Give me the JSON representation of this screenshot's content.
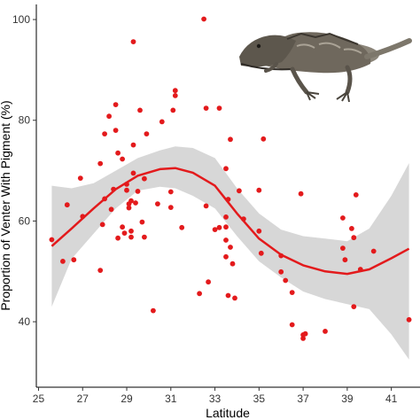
{
  "chart_data": {
    "type": "scatter",
    "title": "",
    "xlabel": "Latitude",
    "ylabel": "Proportion of Venter With Pigment (%)",
    "xlim": [
      24.9,
      42.3
    ],
    "ylim": [
      27,
      103
    ],
    "xticks": [
      "25",
      "27",
      "29",
      "31",
      "33",
      "35",
      "37",
      "39",
      "41"
    ],
    "yticks": [
      "40",
      "60",
      "80",
      "100"
    ],
    "grid": false,
    "colors": {
      "points": "#e31a1c",
      "smooth_line": "#e31a1c",
      "confidence_band": "#d3d3d3",
      "axis": "#000000"
    },
    "illustration": "lizard-photo",
    "points": [
      {
        "x": 25.6,
        "y": 56.3
      },
      {
        "x": 26.1,
        "y": 52.0
      },
      {
        "x": 26.3,
        "y": 63.2
      },
      {
        "x": 26.6,
        "y": 52.3
      },
      {
        "x": 26.9,
        "y": 68.5
      },
      {
        "x": 27.0,
        "y": 60.9
      },
      {
        "x": 27.8,
        "y": 71.4
      },
      {
        "x": 27.8,
        "y": 50.2
      },
      {
        "x": 27.9,
        "y": 59.3
      },
      {
        "x": 28.0,
        "y": 64.4
      },
      {
        "x": 28.0,
        "y": 77.3
      },
      {
        "x": 28.2,
        "y": 80.8
      },
      {
        "x": 28.3,
        "y": 62.3
      },
      {
        "x": 28.4,
        "y": 66.3
      },
      {
        "x": 28.5,
        "y": 83.1
      },
      {
        "x": 28.5,
        "y": 78.0
      },
      {
        "x": 28.6,
        "y": 73.5
      },
      {
        "x": 28.6,
        "y": 56.6
      },
      {
        "x": 28.8,
        "y": 58.8
      },
      {
        "x": 28.8,
        "y": 72.3
      },
      {
        "x": 28.9,
        "y": 57.6
      },
      {
        "x": 29.0,
        "y": 67.3
      },
      {
        "x": 29.0,
        "y": 66.1
      },
      {
        "x": 29.1,
        "y": 63.4
      },
      {
        "x": 29.1,
        "y": 62.6
      },
      {
        "x": 29.2,
        "y": 64.0
      },
      {
        "x": 29.2,
        "y": 58.0
      },
      {
        "x": 29.2,
        "y": 56.8
      },
      {
        "x": 29.3,
        "y": 95.6
      },
      {
        "x": 29.3,
        "y": 75.1
      },
      {
        "x": 29.3,
        "y": 69.5
      },
      {
        "x": 29.4,
        "y": 63.6
      },
      {
        "x": 29.5,
        "y": 65.9
      },
      {
        "x": 29.6,
        "y": 82.0
      },
      {
        "x": 29.7,
        "y": 59.8
      },
      {
        "x": 29.8,
        "y": 56.8
      },
      {
        "x": 29.8,
        "y": 68.4
      },
      {
        "x": 29.9,
        "y": 77.3
      },
      {
        "x": 30.2,
        "y": 42.2
      },
      {
        "x": 30.4,
        "y": 63.4
      },
      {
        "x": 30.6,
        "y": 79.7
      },
      {
        "x": 31.0,
        "y": 65.8
      },
      {
        "x": 31.0,
        "y": 62.7
      },
      {
        "x": 31.1,
        "y": 82.0
      },
      {
        "x": 31.2,
        "y": 84.9
      },
      {
        "x": 31.2,
        "y": 85.9
      },
      {
        "x": 31.5,
        "y": 58.7
      },
      {
        "x": 32.3,
        "y": 45.6
      },
      {
        "x": 32.5,
        "y": 100.1
      },
      {
        "x": 32.6,
        "y": 82.4
      },
      {
        "x": 32.6,
        "y": 63.0
      },
      {
        "x": 32.7,
        "y": 47.9
      },
      {
        "x": 33.0,
        "y": 58.3
      },
      {
        "x": 33.2,
        "y": 82.4
      },
      {
        "x": 33.2,
        "y": 58.7
      },
      {
        "x": 33.5,
        "y": 70.4
      },
      {
        "x": 33.5,
        "y": 60.8
      },
      {
        "x": 33.5,
        "y": 58.8
      },
      {
        "x": 33.5,
        "y": 56.2
      },
      {
        "x": 33.5,
        "y": 52.9
      },
      {
        "x": 33.6,
        "y": 45.2
      },
      {
        "x": 33.6,
        "y": 64.3
      },
      {
        "x": 33.7,
        "y": 76.2
      },
      {
        "x": 33.7,
        "y": 54.8
      },
      {
        "x": 33.8,
        "y": 51.5
      },
      {
        "x": 33.9,
        "y": 44.7
      },
      {
        "x": 34.1,
        "y": 66.0
      },
      {
        "x": 34.3,
        "y": 60.4
      },
      {
        "x": 35.0,
        "y": 66.1
      },
      {
        "x": 35.0,
        "y": 58.0
      },
      {
        "x": 35.1,
        "y": 53.6
      },
      {
        "x": 35.2,
        "y": 76.3
      },
      {
        "x": 36.0,
        "y": 49.9
      },
      {
        "x": 36.0,
        "y": 53.1
      },
      {
        "x": 36.2,
        "y": 48.2
      },
      {
        "x": 36.5,
        "y": 39.4
      },
      {
        "x": 36.5,
        "y": 45.8
      },
      {
        "x": 36.9,
        "y": 65.4
      },
      {
        "x": 37.0,
        "y": 36.7
      },
      {
        "x": 37.0,
        "y": 37.4
      },
      {
        "x": 37.1,
        "y": 37.6
      },
      {
        "x": 38.0,
        "y": 38.1
      },
      {
        "x": 38.8,
        "y": 60.6
      },
      {
        "x": 38.8,
        "y": 54.6
      },
      {
        "x": 38.9,
        "y": 52.3
      },
      {
        "x": 39.2,
        "y": 58.5
      },
      {
        "x": 39.3,
        "y": 43.0
      },
      {
        "x": 39.3,
        "y": 56.7
      },
      {
        "x": 39.4,
        "y": 65.2
      },
      {
        "x": 39.6,
        "y": 50.4
      },
      {
        "x": 40.2,
        "y": 54.0
      },
      {
        "x": 41.8,
        "y": 40.4
      }
    ],
    "smooth_line": [
      {
        "x": 25.6,
        "y": 55.0
      },
      {
        "x": 26.5,
        "y": 58.5
      },
      {
        "x": 27.5,
        "y": 62.5
      },
      {
        "x": 28.5,
        "y": 66.3
      },
      {
        "x": 29.5,
        "y": 69.0
      },
      {
        "x": 30.5,
        "y": 70.3
      },
      {
        "x": 31.2,
        "y": 70.5
      },
      {
        "x": 32.0,
        "y": 69.6
      },
      {
        "x": 33.0,
        "y": 67.0
      },
      {
        "x": 34.0,
        "y": 61.5
      },
      {
        "x": 35.0,
        "y": 56.5
      },
      {
        "x": 36.0,
        "y": 53.3
      },
      {
        "x": 37.0,
        "y": 51.2
      },
      {
        "x": 38.0,
        "y": 50.0
      },
      {
        "x": 39.0,
        "y": 49.5
      },
      {
        "x": 40.0,
        "y": 50.4
      },
      {
        "x": 41.0,
        "y": 52.6
      },
      {
        "x": 41.8,
        "y": 54.5
      }
    ],
    "confidence_band": [
      {
        "x": 25.6,
        "lower": 43.0,
        "upper": 67.0
      },
      {
        "x": 26.5,
        "lower": 52.5,
        "upper": 66.5
      },
      {
        "x": 27.5,
        "lower": 57.5,
        "upper": 67.5
      },
      {
        "x": 28.5,
        "lower": 62.5,
        "upper": 70.0
      },
      {
        "x": 29.5,
        "lower": 66.0,
        "upper": 72.5
      },
      {
        "x": 30.5,
        "lower": 66.8,
        "upper": 74.0
      },
      {
        "x": 31.2,
        "lower": 66.5,
        "upper": 74.8
      },
      {
        "x": 32.0,
        "lower": 65.0,
        "upper": 74.5
      },
      {
        "x": 33.0,
        "lower": 62.5,
        "upper": 72.5
      },
      {
        "x": 34.0,
        "lower": 57.0,
        "upper": 66.5
      },
      {
        "x": 35.0,
        "lower": 52.0,
        "upper": 61.5
      },
      {
        "x": 36.0,
        "lower": 48.8,
        "upper": 58.3
      },
      {
        "x": 37.0,
        "lower": 46.0,
        "upper": 57.0
      },
      {
        "x": 38.0,
        "lower": 44.5,
        "upper": 56.5
      },
      {
        "x": 39.0,
        "lower": 43.5,
        "upper": 56.0
      },
      {
        "x": 40.0,
        "lower": 42.5,
        "upper": 58.5
      },
      {
        "x": 41.0,
        "lower": 37.5,
        "upper": 65.0
      },
      {
        "x": 41.8,
        "lower": 32.5,
        "upper": 71.5
      }
    ]
  }
}
